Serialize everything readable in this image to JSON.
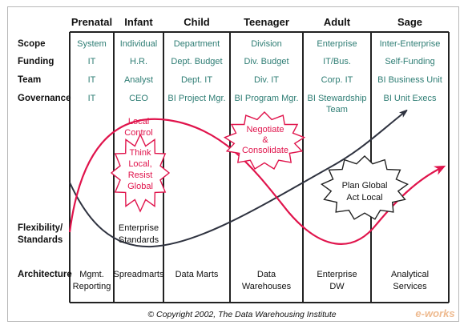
{
  "stages": [
    "Prenatal",
    "Infant",
    "Child",
    "Teenager",
    "Adult",
    "Sage"
  ],
  "row_labels": {
    "scope": "Scope",
    "funding": "Funding",
    "team": "Team",
    "governance": "Governance",
    "flexibility_1": "Flexibility/",
    "flexibility_2": "Standards",
    "architecture": "Architecture"
  },
  "scope": [
    "System",
    "Individual",
    "Department",
    "Division",
    "Enterprise",
    "Inter-Enterprise"
  ],
  "funding": [
    "IT",
    "H.R.",
    "Dept. Budget",
    "Div. Budget",
    "IT/Bus.",
    "Self-Funding"
  ],
  "team": [
    "IT",
    "Analyst",
    "Dept. IT",
    "Div. IT",
    "Corp. IT",
    "BI Business Unit"
  ],
  "governance": [
    [
      "IT"
    ],
    [
      "CEO"
    ],
    [
      "BI Project Mgr."
    ],
    [
      "BI Program Mgr."
    ],
    [
      "BI Stewardship",
      "Team"
    ],
    [
      "BI Unit Execs"
    ]
  ],
  "architecture": [
    [
      "Mgmt.",
      "Reporting"
    ],
    [
      "Spreadmarts"
    ],
    [
      "Data Marts"
    ],
    [
      "Data",
      "Warehouses"
    ],
    [
      "Enterprise",
      "DW"
    ],
    [
      "Analytical",
      "Services"
    ]
  ],
  "annotations": {
    "local_control": [
      "Local",
      "Control"
    ],
    "think_local": [
      "Think",
      "Local,",
      "Resist",
      "Global"
    ],
    "negotiate": [
      "Negotiate",
      "&",
      "Consolidate"
    ],
    "plan_global": [
      "Plan Global",
      "Act Local"
    ],
    "enterprise_standards": [
      "Enterprise",
      "Standards"
    ]
  },
  "copyright": "© Copyright 2002, The Data Warehousing Institute",
  "watermark": "e-works",
  "colors": {
    "teal_text": "#2e7d74",
    "red": "#e0144c",
    "dark_line": "#2f3340",
    "border": "#222222"
  }
}
